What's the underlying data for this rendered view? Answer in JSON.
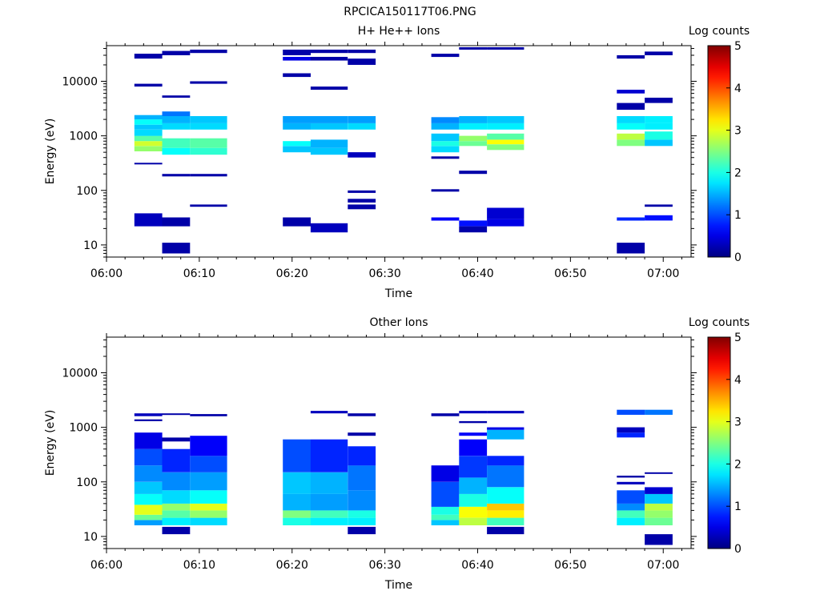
{
  "figure_title": "RPCICA150117T06.PNG",
  "chart_data": [
    {
      "type": "heatmap",
      "title": "H+ He++ Ions",
      "xlabel": "Time",
      "ylabel": "Energy (eV)",
      "x_ticks": [
        "06:00",
        "06:10",
        "06:20",
        "06:30",
        "06:40",
        "06:50",
        "07:00"
      ],
      "y_ticks": [
        "10",
        "100",
        "1000",
        "10000"
      ],
      "y_scale": "log",
      "xlim": [
        "06:00",
        "07:03"
      ],
      "ylim": [
        6,
        45000
      ],
      "colorbar": {
        "label": "Log counts",
        "range": [
          0,
          5
        ],
        "ticks": [
          "0",
          "1",
          "2",
          "3",
          "4",
          "5"
        ]
      },
      "columns": [
        {
          "start": "06:03",
          "end": "06:06",
          "cells": [
            [
              22,
              38,
              0.3
            ],
            [
              300,
              320,
              0.2
            ],
            [
              520,
              650,
              2.6
            ],
            [
              650,
              800,
              2.9
            ],
            [
              800,
              1000,
              2.3
            ],
            [
              1000,
              1300,
              1.7
            ],
            [
              1300,
              1600,
              1.6
            ],
            [
              1600,
              2000,
              1.9
            ],
            [
              2000,
              2400,
              1.5
            ],
            [
              8000,
              9000,
              0.2
            ],
            [
              26000,
              32000,
              0.2
            ]
          ]
        },
        {
          "start": "06:06",
          "end": "06:09",
          "cells": [
            [
              7,
              11,
              0.2
            ],
            [
              22,
              32,
              0.2
            ],
            [
              180,
              200,
              0.2
            ],
            [
              450,
              600,
              1.9
            ],
            [
              600,
              900,
              2.2
            ],
            [
              1300,
              1700,
              1.7
            ],
            [
              1700,
              2300,
              1.5
            ],
            [
              2300,
              2800,
              1.2
            ],
            [
              5000,
              5500,
              0.2
            ],
            [
              30000,
              36000,
              0.2
            ]
          ]
        },
        {
          "start": "06:09",
          "end": "06:13",
          "cells": [
            [
              50,
              55,
              0.2
            ],
            [
              180,
              200,
              0.2
            ],
            [
              450,
              600,
              2.1
            ],
            [
              600,
              900,
              2.3
            ],
            [
              1300,
              1700,
              1.7
            ],
            [
              1700,
              2300,
              1.6
            ],
            [
              9000,
              10000,
              0.2
            ],
            [
              33000,
              38000,
              0.2
            ]
          ]
        },
        {
          "start": "06:19",
          "end": "06:22",
          "cells": [
            [
              22,
              32,
              0.2
            ],
            [
              500,
              650,
              1.6
            ],
            [
              650,
              800,
              1.9
            ],
            [
              1300,
              1700,
              1.5
            ],
            [
              1700,
              2300,
              1.4
            ],
            [
              12000,
              14000,
              0.2
            ],
            [
              24000,
              28000,
              0.5
            ],
            [
              30000,
              38000,
              0.2
            ]
          ]
        },
        {
          "start": "06:22",
          "end": "06:26",
          "cells": [
            [
              17,
              25,
              0.3
            ],
            [
              450,
              600,
              1.6
            ],
            [
              600,
              850,
              1.5
            ],
            [
              1300,
              1700,
              1.6
            ],
            [
              1700,
              2300,
              1.4
            ],
            [
              7000,
              8000,
              0.2
            ],
            [
              24000,
              28000,
              0.2
            ],
            [
              33000,
              38000,
              0.2
            ]
          ]
        },
        {
          "start": "06:26",
          "end": "06:29",
          "cells": [
            [
              45,
              55,
              0.2
            ],
            [
              60,
              70,
              0.2
            ],
            [
              90,
              100,
              0.2
            ],
            [
              400,
              500,
              0.3
            ],
            [
              1300,
              1700,
              1.7
            ],
            [
              1700,
              2300,
              1.4
            ],
            [
              20000,
              26000,
              0.2
            ],
            [
              33000,
              38000,
              0.2
            ]
          ]
        },
        {
          "start": "06:35",
          "end": "06:38",
          "cells": [
            [
              28,
              32,
              0.6
            ],
            [
              95,
              105,
              0.2
            ],
            [
              380,
              420,
              0.2
            ],
            [
              500,
              650,
              1.7
            ],
            [
              650,
              800,
              2.0
            ],
            [
              800,
              1100,
              1.6
            ],
            [
              1300,
              1700,
              1.5
            ],
            [
              1700,
              2200,
              1.3
            ],
            [
              28000,
              32000,
              0.2
            ]
          ]
        },
        {
          "start": "06:38",
          "end": "06:41",
          "cells": [
            [
              17,
              22,
              0.2
            ],
            [
              22,
              28,
              0.7
            ],
            [
              200,
              230,
              0.2
            ],
            [
              650,
              800,
              2.4
            ],
            [
              800,
              1000,
              2.6
            ],
            [
              1300,
              1700,
              1.8
            ],
            [
              1700,
              2300,
              1.5
            ],
            [
              38000,
              42000,
              0.2
            ]
          ]
        },
        {
          "start": "06:41",
          "end": "06:45",
          "cells": [
            [
              22,
              30,
              0.5
            ],
            [
              30,
              48,
              0.4
            ],
            [
              550,
              700,
              2.5
            ],
            [
              700,
              850,
              3.1
            ],
            [
              850,
              1100,
              2.3
            ],
            [
              1300,
              1700,
              1.8
            ],
            [
              1700,
              2300,
              1.6
            ],
            [
              38000,
              42000,
              0.2
            ]
          ]
        },
        {
          "start": "06:55",
          "end": "06:58",
          "cells": [
            [
              7,
              11,
              0.2
            ],
            [
              28,
              32,
              0.8
            ],
            [
              650,
              850,
              2.5
            ],
            [
              850,
              1100,
              2.8
            ],
            [
              1300,
              1700,
              1.9
            ],
            [
              1700,
              2300,
              1.7
            ],
            [
              3000,
              4000,
              0.2
            ],
            [
              6000,
              7000,
              0.4
            ],
            [
              26000,
              30000,
              0.2
            ]
          ]
        },
        {
          "start": "06:58",
          "end": "07:01",
          "cells": [
            [
              28,
              35,
              0.7
            ],
            [
              50,
              55,
              0.2
            ],
            [
              650,
              850,
              1.6
            ],
            [
              850,
              1200,
              2.0
            ],
            [
              1300,
              1700,
              1.8
            ],
            [
              1700,
              2300,
              1.8
            ],
            [
              4000,
              5000,
              0.2
            ],
            [
              30000,
              35000,
              0.2
            ]
          ]
        }
      ]
    },
    {
      "type": "heatmap",
      "title": "Other Ions",
      "xlabel": "Time",
      "ylabel": "Energy (eV)",
      "x_ticks": [
        "06:00",
        "06:10",
        "06:20",
        "06:30",
        "06:40",
        "06:50",
        "07:00"
      ],
      "y_ticks": [
        "10",
        "100",
        "1000",
        "10000"
      ],
      "y_scale": "log",
      "xlim": [
        "06:00",
        "07:03"
      ],
      "ylim": [
        6,
        45000
      ],
      "colorbar": {
        "label": "Log counts",
        "range": [
          0,
          5
        ],
        "ticks": [
          "0",
          "1",
          "2",
          "3",
          "4",
          "5"
        ]
      },
      "columns": [
        {
          "start": "06:03",
          "end": "06:06",
          "cells": [
            [
              16,
              20,
              1.4
            ],
            [
              20,
              25,
              2.4
            ],
            [
              25,
              38,
              3.0
            ],
            [
              38,
              60,
              1.9
            ],
            [
              60,
              100,
              1.6
            ],
            [
              100,
              200,
              1.3
            ],
            [
              200,
              400,
              1.0
            ],
            [
              400,
              800,
              0.5
            ],
            [
              1300,
              1400,
              0.2
            ],
            [
              1600,
              1800,
              0.3
            ]
          ]
        },
        {
          "start": "06:06",
          "end": "06:09",
          "cells": [
            [
              11,
              15,
              0.2
            ],
            [
              16,
              22,
              1.8
            ],
            [
              22,
              30,
              2.3
            ],
            [
              30,
              40,
              2.6
            ],
            [
              40,
              70,
              1.7
            ],
            [
              70,
              150,
              1.3
            ],
            [
              150,
              400,
              0.8
            ],
            [
              550,
              650,
              0.2
            ],
            [
              1700,
              1800,
              0.2
            ]
          ]
        },
        {
          "start": "06:09",
          "end": "06:13",
          "cells": [
            [
              16,
              22,
              1.7
            ],
            [
              22,
              30,
              2.6
            ],
            [
              30,
              40,
              3.0
            ],
            [
              40,
              70,
              1.9
            ],
            [
              70,
              150,
              1.4
            ],
            [
              150,
              300,
              1.0
            ],
            [
              300,
              700,
              0.6
            ],
            [
              1600,
              1750,
              0.2
            ]
          ]
        },
        {
          "start": "06:19",
          "end": "06:22",
          "cells": [
            [
              16,
              22,
              2.0
            ],
            [
              22,
              30,
              2.5
            ],
            [
              30,
              60,
              1.5
            ],
            [
              60,
              150,
              1.6
            ],
            [
              150,
              600,
              1.0
            ]
          ]
        },
        {
          "start": "06:22",
          "end": "06:26",
          "cells": [
            [
              16,
              22,
              1.8
            ],
            [
              22,
              30,
              2.2
            ],
            [
              30,
              60,
              1.4
            ],
            [
              60,
              150,
              1.5
            ],
            [
              150,
              600,
              0.8
            ],
            [
              1800,
              2000,
              0.3
            ]
          ]
        },
        {
          "start": "06:26",
          "end": "06:29",
          "cells": [
            [
              11,
              15,
              0.2
            ],
            [
              16,
              22,
              1.8
            ],
            [
              22,
              30,
              2.0
            ],
            [
              30,
              70,
              1.3
            ],
            [
              70,
              200,
              1.2
            ],
            [
              200,
              450,
              0.8
            ],
            [
              700,
              800,
              0.2
            ],
            [
              1600,
              1800,
              0.2
            ]
          ]
        },
        {
          "start": "06:35",
          "end": "06:38",
          "cells": [
            [
              16,
              20,
              1.6
            ],
            [
              20,
              25,
              2.2
            ],
            [
              25,
              35,
              2.0
            ],
            [
              35,
              100,
              1.0
            ],
            [
              100,
              200,
              0.5
            ],
            [
              1600,
              1800,
              0.2
            ]
          ]
        },
        {
          "start": "06:38",
          "end": "06:41",
          "cells": [
            [
              16,
              22,
              2.8
            ],
            [
              22,
              35,
              3.1
            ],
            [
              35,
              60,
              2.0
            ],
            [
              60,
              120,
              1.5
            ],
            [
              120,
              300,
              0.9
            ],
            [
              300,
              600,
              0.6
            ],
            [
              700,
              800,
              0.6
            ],
            [
              1200,
              1300,
              0.2
            ],
            [
              1800,
              2000,
              0.3
            ]
          ]
        },
        {
          "start": "06:41",
          "end": "06:45",
          "cells": [
            [
              11,
              15,
              0.2
            ],
            [
              16,
              22,
              2.2
            ],
            [
              22,
              30,
              3.2
            ],
            [
              30,
              40,
              3.4
            ],
            [
              40,
              80,
              1.9
            ],
            [
              80,
              200,
              1.2
            ],
            [
              200,
              300,
              0.8
            ],
            [
              600,
              900,
              1.5
            ],
            [
              900,
              1000,
              0.5
            ],
            [
              1800,
              2000,
              0.3
            ]
          ]
        },
        {
          "start": "06:55",
          "end": "06:58",
          "cells": [
            [
              16,
              22,
              1.8
            ],
            [
              22,
              30,
              2.2
            ],
            [
              30,
              40,
              1.3
            ],
            [
              40,
              70,
              1.0
            ],
            [
              90,
              100,
              0.3
            ],
            [
              120,
              130,
              0.2
            ],
            [
              650,
              800,
              0.8
            ],
            [
              800,
              1000,
              0.3
            ],
            [
              1700,
              2100,
              1.0
            ]
          ]
        },
        {
          "start": "06:58",
          "end": "07:01",
          "cells": [
            [
              7,
              11,
              0.2
            ],
            [
              16,
              22,
              2.4
            ],
            [
              22,
              30,
              2.6
            ],
            [
              30,
              40,
              2.8
            ],
            [
              40,
              60,
              1.6
            ],
            [
              60,
              80,
              0.4
            ],
            [
              140,
              150,
              0.2
            ],
            [
              1700,
              2100,
              1.2
            ]
          ]
        }
      ]
    }
  ]
}
